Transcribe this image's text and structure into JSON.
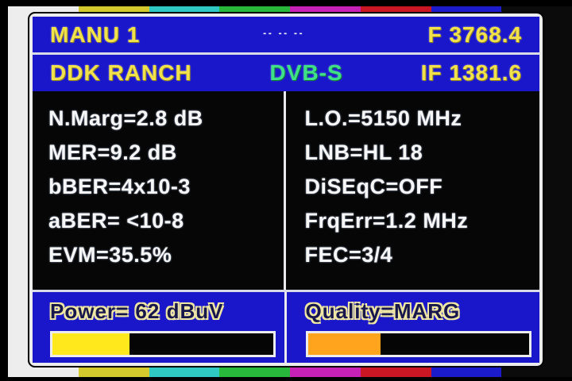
{
  "colors": {
    "panel_blue": "#1a17cb",
    "frame_white": "#ececec",
    "text_yellow": "#f1e14b",
    "standard_green": "#3fe187",
    "metric_white": "#f6f6f6",
    "colorbars": [
      "#ededed",
      "#d4c92d",
      "#2fc8c3",
      "#27b83c",
      "#c722b5",
      "#cb1623",
      "#1b1bcb",
      "#0b0b0b"
    ]
  },
  "header": {
    "channel": "MANU 1",
    "dashes": "-- -- --",
    "frequency": "F 3768.4"
  },
  "subheader": {
    "name": "DDK RANCH",
    "standard": "DVB-S",
    "if": "IF 1381.6"
  },
  "metrics_left": [
    "N.Marg=2.8 dB",
    "MER=9.2 dB",
    "bBER=4x10-3",
    "aBER= <10-8",
    "EVM=35.5%"
  ],
  "metrics_right": [
    "L.O.=5150 MHz",
    "LNB=HL 18",
    "DiSEqC=OFF",
    "FrqErr=1.2 MHz",
    "FEC=3/4"
  ],
  "power": {
    "label": "Power= 62 dBuV",
    "percent": "35%",
    "fill": "#ffe81c"
  },
  "quality": {
    "label": "Quality=MARG",
    "percent": "33%",
    "fill": "#ffa41c"
  }
}
